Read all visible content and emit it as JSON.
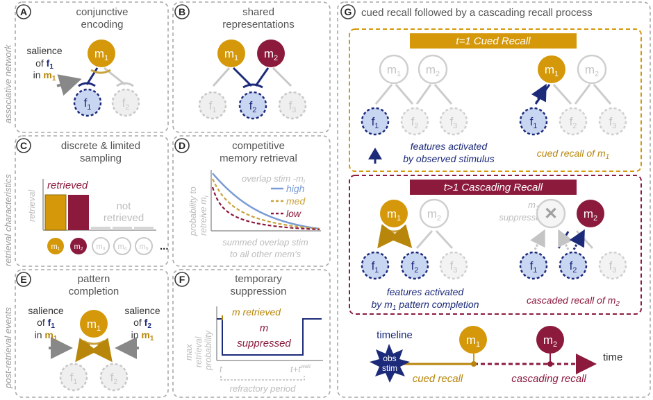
{
  "side_labels": {
    "associative": "associative network",
    "retrieval": "retrieval characteristics",
    "post": "post-retrieval events"
  },
  "panels": {
    "A": {
      "letter": "A",
      "title": "conjunctive",
      "title2": "encoding",
      "salience1": "salience",
      "salience2": "of ",
      "salience_f": "f",
      "salience_f_sub": "1",
      "salience3": "in ",
      "salience_m": "m",
      "salience_m_sub": "1"
    },
    "B": {
      "letter": "B",
      "title": "shared",
      "title2": "representations"
    },
    "C": {
      "letter": "C",
      "title": "discrete & limited",
      "title2": "sampling",
      "retrieved": "retrieved",
      "not1": "not",
      "not2": "retrieved",
      "ylabel": "retrieval",
      "ellipsis": "..."
    },
    "D": {
      "letter": "D",
      "title": "competitive",
      "title2": "memory retrieval",
      "legend_title": "overlap stim -m",
      "legend_title_sub": "i",
      "high": "high",
      "med": "med",
      "low": "low",
      "ylabel1": "probability to",
      "ylabel2": "retreive m",
      "ylabel2_sub": "i",
      "xlabel1": "summed overlap stim",
      "xlabel2": "to all other mem's"
    },
    "E": {
      "letter": "E",
      "title": "pattern",
      "title2": "completion",
      "sal_left1": "salience",
      "sal_left2": "of ",
      "sal_left_f": "f",
      "sal_left_f_sub": "1",
      "sal_left3": "in ",
      "sal_left_m": "m",
      "sal_left_m_sub": "1",
      "sal_right1": "salience",
      "sal_right2": "of ",
      "sal_right_f": "f",
      "sal_right_f_sub": "2",
      "sal_right3": "in ",
      "sal_right_m": "m",
      "sal_right_m_sub": "1"
    },
    "F": {
      "letter": "F",
      "title": "temporary",
      "title2": "suppression",
      "ylabel1": "max",
      "ylabel2": "retrieval",
      "ylabel3": "probability",
      "m_retrieved": "m retrieved",
      "m": "m",
      "suppressed": "suppressed",
      "t": "t",
      "t_wait": "t+t",
      "t_wait_sup": "wait",
      "refractory": "refractory period"
    },
    "G": {
      "letter": "G",
      "title": "cued recall followed by a cascading recall process",
      "banner1": "t=1  Cued Recall",
      "banner2": "t>1  Cascading Recall",
      "features_obs1": "features activated",
      "features_obs2": "by observed stimulus",
      "cued_recall_of": "cued recall of m",
      "cued_recall_of_sub": "1",
      "m1_suppressed1": "m",
      "m1_suppressed1_sub": "1",
      "m1_suppressed2": "suppressed",
      "features_pc1": "features activated",
      "features_pc2": "by m",
      "features_pc2_sub": "1",
      "features_pc2_tail": " pattern completion",
      "cascaded": "cascaded recall of m",
      "cascaded_sub": "2",
      "timeline": "timeline",
      "obs": "obs",
      "stim": "stim",
      "time": "time",
      "cued_recall": "cued recall",
      "cascading_recall": "cascading recall"
    }
  },
  "nodes": {
    "m": "m",
    "f": "f",
    "sub1": "1",
    "sub2": "2",
    "sub3": "3",
    "sub4": "4",
    "sub5": "5"
  },
  "colors": {
    "gold": "#d4980a",
    "maroon": "#8b1a3c",
    "navy": "#1c2a7a",
    "lightblue": "#c9d6f2",
    "grey": "#c8c8c8",
    "line_high": "#7a9bd6",
    "line_med": "#c9a23a",
    "line_low": "#8b1a3c"
  }
}
